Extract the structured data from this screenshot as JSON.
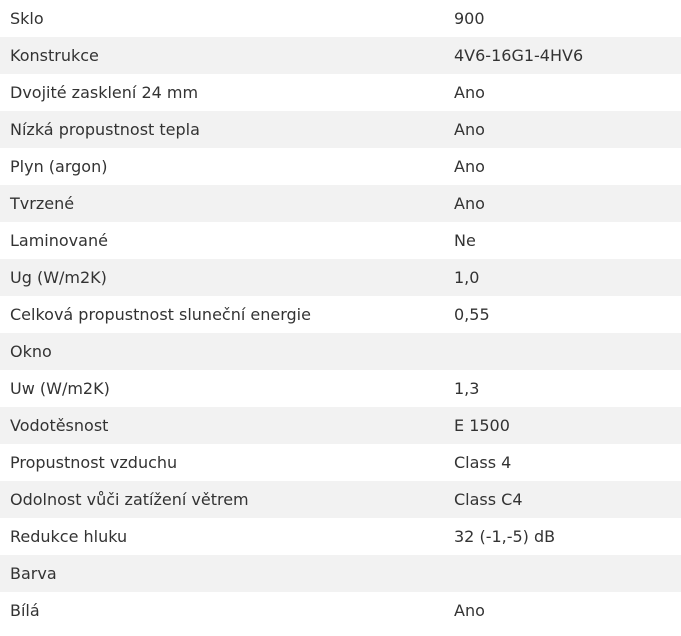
{
  "rows": [
    {
      "label": "Sklo",
      "value": "900"
    },
    {
      "label": "Konstrukce",
      "value": "4V6-16G1-4HV6"
    },
    {
      "label": "Dvojité zasklení 24 mm",
      "value": "Ano"
    },
    {
      "label": "Nízká propustnost tepla",
      "value": "Ano"
    },
    {
      "label": "Plyn (argon)",
      "value": "Ano"
    },
    {
      "label": "Tvrzené",
      "value": "Ano"
    },
    {
      "label": "Laminované",
      "value": "Ne"
    },
    {
      "label": "Ug (W/m2K)",
      "value": "1,0"
    },
    {
      "label": "Celková propustnost sluneční energie",
      "value": "0,55"
    },
    {
      "label": "Okno",
      "value": ""
    },
    {
      "label": "Uw (W/m2K)",
      "value": "1,3"
    },
    {
      "label": "Vodotěsnost",
      "value": "E 1500"
    },
    {
      "label": "Propustnost vzduchu",
      "value": "Class 4"
    },
    {
      "label": "Odolnost vůči zatížení větrem",
      "value": "Class C4"
    },
    {
      "label": "Redukce hluku",
      "value": "32 (-1,-5) dB"
    },
    {
      "label": "Barva",
      "value": ""
    },
    {
      "label": "Bílá",
      "value": "Ano"
    }
  ]
}
